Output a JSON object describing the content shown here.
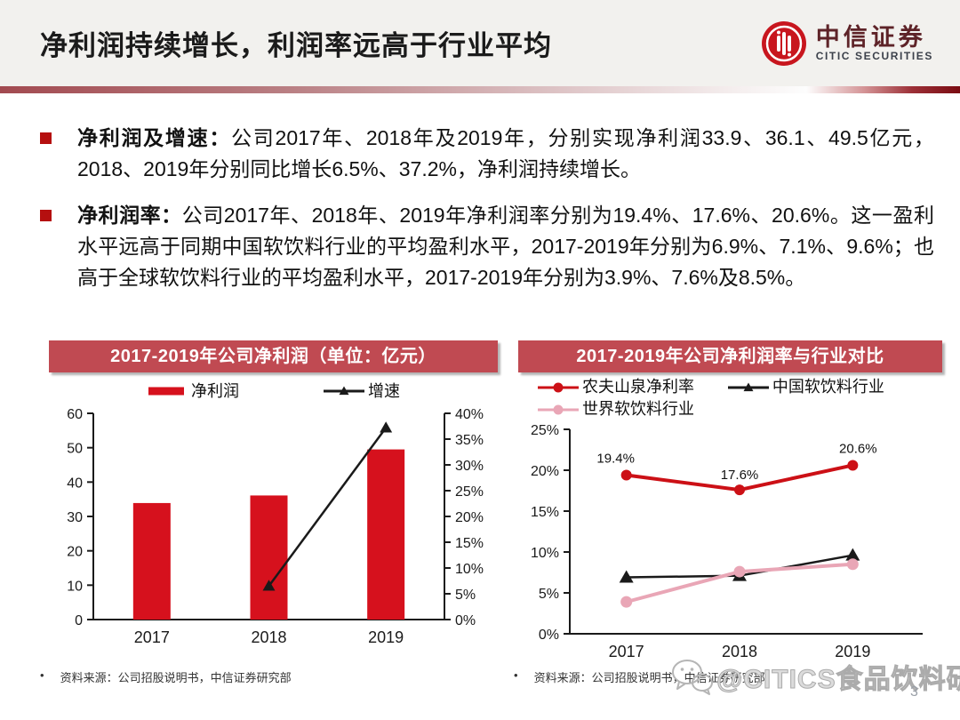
{
  "header": {
    "title": "净利润持续增长，利润率远高于行业平均",
    "logo_cn": "中信证券",
    "logo_en": "CITIC SECURITIES"
  },
  "bullets": [
    {
      "lead": "净利润及增速：",
      "text": "公司2017年、2018年及2019年，分别实现净利润33.9、36.1、49.5亿元，2018、2019年分别同比增长6.5%、37.2%，净利润持续增长。"
    },
    {
      "lead": "净利润率：",
      "text": "公司2017年、2018年、2019年净利润率分别为19.4%、17.6%、20.6%。这一盈利水平远高于同期中国软饮料行业的平均盈利水平，2017-2019年分别为6.9%、7.1%、9.6%；也高于全球软饮料行业的平均盈利水平，2017-2019年分别为3.9%、7.6%及8.5%。"
    }
  ],
  "chart_data": [
    {
      "type": "bar",
      "title": "2017-2019年公司净利润（单位：亿元）",
      "categories": [
        "2017",
        "2018",
        "2019"
      ],
      "series": [
        {
          "name": "净利润",
          "type": "bar",
          "axis": "left",
          "values": [
            33.9,
            36.1,
            49.5
          ],
          "color": "#d6111d"
        },
        {
          "name": "增速",
          "type": "line",
          "axis": "right",
          "values": [
            null,
            6.5,
            37.2
          ],
          "color": "#1a1a1a",
          "marker": "triangle"
        }
      ],
      "left_axis": {
        "min": 0,
        "max": 60,
        "step": 10,
        "ticks": [
          "0",
          "10",
          "20",
          "30",
          "40",
          "50",
          "60"
        ]
      },
      "right_axis": {
        "min": 0,
        "max": 40,
        "step": 5,
        "ticks": [
          "0%",
          "5%",
          "10%",
          "15%",
          "20%",
          "25%",
          "30%",
          "35%",
          "40%"
        ]
      },
      "legend_position": "top",
      "grid": false
    },
    {
      "type": "line",
      "title": "2017-2019年公司净利润率与行业对比",
      "categories": [
        "2017",
        "2018",
        "2019"
      ],
      "series": [
        {
          "name": "农夫山泉净利率",
          "values": [
            19.4,
            17.6,
            20.6
          ],
          "color": "#cc1016",
          "marker": "circle",
          "labels": [
            "19.4%",
            "17.6%",
            "20.6%"
          ]
        },
        {
          "name": "中国软饮料行业",
          "values": [
            6.9,
            7.1,
            9.6
          ],
          "color": "#1a1a1a",
          "marker": "triangle"
        },
        {
          "name": "世界软饮料行业",
          "values": [
            3.9,
            7.6,
            8.5
          ],
          "color": "#e9a6b6",
          "marker": "circle"
        }
      ],
      "y_axis": {
        "min": 0,
        "max": 25,
        "step": 5,
        "ticks": [
          "0%",
          "5%",
          "10%",
          "15%",
          "20%",
          "25%"
        ]
      },
      "legend_position": "top",
      "grid": false
    }
  ],
  "footer": {
    "left_source": "资料来源：公司招股说明书，中信证券研究部",
    "right_source": "资料来源：公司招股说明书，中信证券研究部",
    "watermark": "@CITICS食品饮料研究",
    "page_number": "3"
  },
  "colors": {
    "banner_red": "#c04a52",
    "accent_red": "#d6111d",
    "line_black": "#1a1a1a",
    "line_pink": "#e9a6b6",
    "logo_red": "#c8161e"
  }
}
